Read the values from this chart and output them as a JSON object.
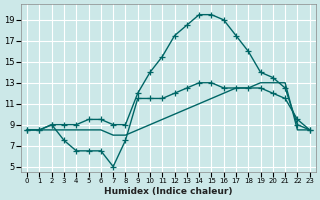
{
  "xlabel": "Humidex (Indice chaleur)",
  "bg_color": "#cce8e8",
  "grid_color": "#ffffff",
  "line_color": "#006666",
  "xlim": [
    -0.5,
    23.5
  ],
  "ylim": [
    4.5,
    20.5
  ],
  "xticks": [
    0,
    1,
    2,
    3,
    4,
    5,
    6,
    7,
    8,
    9,
    10,
    11,
    12,
    13,
    14,
    15,
    16,
    17,
    18,
    19,
    20,
    21,
    22,
    23
  ],
  "yticks": [
    5,
    7,
    9,
    11,
    13,
    15,
    17,
    19
  ],
  "line_top_x": [
    0,
    1,
    2,
    3,
    4,
    5,
    6,
    7,
    8,
    9,
    10,
    11,
    12,
    13,
    14,
    15,
    16,
    17,
    18,
    19,
    20,
    21,
    22,
    23
  ],
  "line_top_y": [
    8.5,
    8.5,
    9.0,
    9.0,
    9.0,
    9.5,
    9.5,
    9.0,
    9.0,
    12.0,
    14.0,
    15.5,
    17.5,
    18.5,
    19.5,
    19.5,
    19.0,
    17.5,
    16.0,
    14.0,
    13.5,
    12.5,
    9.0,
    8.5
  ],
  "line_mid_x": [
    0,
    1,
    2,
    3,
    4,
    5,
    6,
    7,
    8,
    9,
    10,
    11,
    12,
    13,
    14,
    15,
    16,
    17,
    18,
    19,
    20,
    21,
    22,
    23
  ],
  "line_mid_y": [
    8.5,
    8.5,
    9.0,
    7.5,
    6.5,
    6.5,
    6.5,
    5.0,
    7.5,
    11.5,
    11.5,
    11.5,
    12.0,
    12.5,
    13.0,
    13.0,
    12.5,
    12.5,
    12.5,
    12.5,
    12.0,
    11.5,
    9.5,
    8.5
  ],
  "line_bot_x": [
    0,
    1,
    2,
    3,
    4,
    5,
    6,
    7,
    8,
    9,
    10,
    11,
    12,
    13,
    14,
    15,
    16,
    17,
    18,
    19,
    20,
    21,
    22,
    23
  ],
  "line_bot_y": [
    8.5,
    8.5,
    8.5,
    8.5,
    8.5,
    8.5,
    8.5,
    8.0,
    8.0,
    8.5,
    9.0,
    9.5,
    10.0,
    10.5,
    11.0,
    11.5,
    12.0,
    12.5,
    12.5,
    13.0,
    13.0,
    13.0,
    8.5,
    8.5
  ],
  "markersize": 4,
  "linewidth": 1.0
}
